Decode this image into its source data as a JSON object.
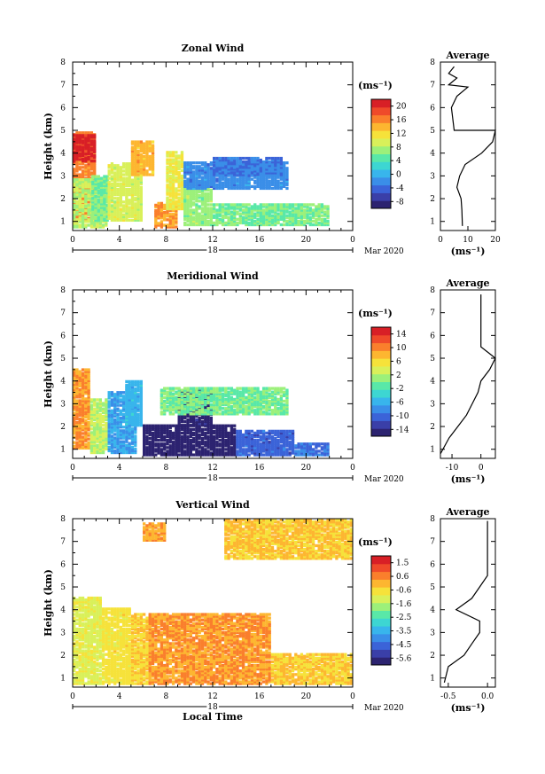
{
  "chart_data": [
    {
      "type": "heatmap",
      "title": "Zonal Wind",
      "ylabel": "Height (km)",
      "xticks": [
        "0",
        "4",
        "8",
        "12",
        "16",
        "20",
        "0"
      ],
      "day_label": "18",
      "date_label": "Mar 2020",
      "xlim": [
        0,
        24
      ],
      "ylim": [
        0.6,
        8
      ],
      "yticks": [
        "1",
        "2",
        "3",
        "4",
        "5",
        "6",
        "7",
        "8"
      ],
      "colorbar": {
        "unit": "(ms⁻¹)",
        "ticks": [
          "20",
          "16",
          "12",
          "8",
          "4",
          "0",
          "-4",
          "-8"
        ],
        "range": [
          -8,
          20
        ]
      },
      "blobs": [
        {
          "t0": 0,
          "t1": 2,
          "h0": 1.0,
          "h1": 4.9,
          "v": 15
        },
        {
          "t0": 0,
          "t1": 1.8,
          "h0": 3.6,
          "h1": 4.8,
          "v": 19
        },
        {
          "t0": 0,
          "t1": 3,
          "h0": 0.7,
          "h1": 2.8,
          "v": 8
        },
        {
          "t0": 1.6,
          "t1": 3,
          "h0": 1.0,
          "h1": 3.0,
          "v": 6
        },
        {
          "t0": 3,
          "t1": 6,
          "h0": 1.0,
          "h1": 3.5,
          "v": 9
        },
        {
          "t0": 5,
          "t1": 7,
          "h0": 3.0,
          "h1": 4.5,
          "v": 13
        },
        {
          "t0": 7,
          "t1": 9,
          "h0": 0.7,
          "h1": 1.8,
          "v": 14
        },
        {
          "t0": 8,
          "t1": 9.5,
          "h0": 1.5,
          "h1": 4.0,
          "v": 10
        },
        {
          "t0": 9.5,
          "t1": 12,
          "h0": 0.8,
          "h1": 2.8,
          "v": 7
        },
        {
          "t0": 12,
          "t1": 22,
          "h0": 0.8,
          "h1": 1.7,
          "v": 6
        },
        {
          "t0": 9.5,
          "t1": 18.5,
          "h0": 2.4,
          "h1": 3.6,
          "v": -1
        },
        {
          "t0": 12,
          "t1": 18,
          "h0": 3.0,
          "h1": 3.8,
          "v": -2
        }
      ],
      "average": {
        "title": "Average",
        "xlim": [
          0,
          20
        ],
        "xticks": [
          "0",
          "10",
          "20"
        ],
        "xlabel": "(ms⁻¹)",
        "profile": [
          [
            8,
            0.8
          ],
          [
            7.8,
            1.5
          ],
          [
            7.5,
            2.0
          ],
          [
            6,
            2.5
          ],
          [
            7,
            3.0
          ],
          [
            9,
            3.5
          ],
          [
            15,
            4.0
          ],
          [
            19,
            4.5
          ],
          [
            21,
            5.0
          ],
          [
            5,
            5.0
          ],
          [
            4,
            6.0
          ],
          [
            6,
            6.5
          ],
          [
            10,
            6.9
          ],
          [
            3,
            7.0
          ],
          [
            6,
            7.3
          ],
          [
            3,
            7.5
          ],
          [
            5,
            7.8
          ]
        ]
      }
    },
    {
      "type": "heatmap",
      "title": "Meridional Wind",
      "ylabel": "Height (km)",
      "xticks": [
        "0",
        "4",
        "8",
        "12",
        "16",
        "20",
        "0"
      ],
      "day_label": "18",
      "date_label": "Mar 2020",
      "xlim": [
        0,
        24
      ],
      "ylim": [
        0.6,
        8
      ],
      "yticks": [
        "1",
        "2",
        "3",
        "4",
        "5",
        "6",
        "7",
        "8"
      ],
      "colorbar": {
        "unit": "(ms⁻¹)",
        "ticks": [
          "14",
          "10",
          "6",
          "2",
          "-2",
          "-6",
          "-10",
          "-14"
        ],
        "range": [
          -14,
          14
        ]
      },
      "blobs": [
        {
          "t0": 0,
          "t1": 1.5,
          "h0": 1.0,
          "h1": 4.5,
          "v": 8
        },
        {
          "t0": 1.5,
          "t1": 3,
          "h0": 0.8,
          "h1": 3.2,
          "v": 2
        },
        {
          "t0": 3,
          "t1": 5.5,
          "h0": 0.8,
          "h1": 3.5,
          "v": -6
        },
        {
          "t0": 4.5,
          "t1": 6,
          "h0": 2.0,
          "h1": 4.0,
          "v": -5
        },
        {
          "t0": 6,
          "t1": 14,
          "h0": 0.7,
          "h1": 2.0,
          "v": -14
        },
        {
          "t0": 9,
          "t1": 12,
          "h0": 2.0,
          "h1": 3.6,
          "v": -13
        },
        {
          "t0": 14,
          "t1": 19,
          "h0": 0.7,
          "h1": 1.8,
          "v": -9
        },
        {
          "t0": 19,
          "t1": 22,
          "h0": 0.7,
          "h1": 1.2,
          "v": -8
        },
        {
          "t0": 7.5,
          "t1": 18.5,
          "h0": 2.5,
          "h1": 3.7,
          "v": 0
        }
      ],
      "average": {
        "title": "Average",
        "xlim": [
          -14,
          5
        ],
        "xticks": [
          "-10",
          "0"
        ],
        "xlabel": "(ms⁻¹)",
        "profile": [
          [
            -14,
            0.8
          ],
          [
            -11,
            1.5
          ],
          [
            -8,
            2.0
          ],
          [
            -5,
            2.5
          ],
          [
            -3,
            3.0
          ],
          [
            -1,
            3.5
          ],
          [
            0,
            4.0
          ],
          [
            3,
            4.5
          ],
          [
            5,
            5.0
          ],
          [
            3,
            5.2
          ],
          [
            0,
            5.5
          ],
          [
            0,
            6.0
          ],
          [
            0,
            6.5
          ],
          [
            0,
            7.0
          ],
          [
            0,
            7.5
          ],
          [
            0,
            7.8
          ]
        ]
      }
    },
    {
      "type": "heatmap",
      "title": "Vertical Wind",
      "ylabel": "Height (km)",
      "xlabel": "Local Time",
      "xticks": [
        "0",
        "4",
        "8",
        "12",
        "16",
        "20",
        "0"
      ],
      "day_label": "18",
      "date_label": "Mar 2020",
      "xlim": [
        0,
        24
      ],
      "ylim": [
        0.6,
        8
      ],
      "yticks": [
        "1",
        "2",
        "3",
        "4",
        "5",
        "6",
        "7",
        "8"
      ],
      "colorbar": {
        "unit": "(ms⁻¹)",
        "ticks": [
          "1.5",
          "0.6",
          "-0.6",
          "-1.6",
          "-2.5",
          "-3.5",
          "-4.5",
          "-5.6"
        ],
        "range": [
          -6,
          2
        ]
      },
      "blobs": [
        {
          "t0": 0,
          "t1": 2.5,
          "h0": 0.7,
          "h1": 4.5,
          "v": -1.0
        },
        {
          "t0": 2.5,
          "t1": 5,
          "h0": 0.7,
          "h1": 4.0,
          "v": -0.6
        },
        {
          "t0": 5,
          "t1": 6.5,
          "h0": 0.7,
          "h1": 3.8,
          "v": -0.3
        },
        {
          "t0": 6.5,
          "t1": 17,
          "h0": 0.7,
          "h1": 3.8,
          "v": 0.3
        },
        {
          "t0": 17,
          "t1": 24,
          "h0": 0.7,
          "h1": 2.0,
          "v": -0.3
        },
        {
          "t0": 13,
          "t1": 24,
          "h0": 6.2,
          "h1": 7.9,
          "v": -0.2
        },
        {
          "t0": 6,
          "t1": 8,
          "h0": 7.0,
          "h1": 7.8,
          "v": 0.2
        }
      ],
      "average": {
        "title": "Average",
        "xlim": [
          -0.6,
          0.1
        ],
        "xticks": [
          "-0.5",
          "0.0"
        ],
        "xlabel": "(ms⁻¹)",
        "profile": [
          [
            -0.55,
            0.8
          ],
          [
            -0.5,
            1.5
          ],
          [
            -0.3,
            2.0
          ],
          [
            -0.2,
            2.5
          ],
          [
            -0.1,
            3.0
          ],
          [
            -0.1,
            3.5
          ],
          [
            -0.4,
            4.0
          ],
          [
            -0.2,
            4.5
          ],
          [
            -0.1,
            5.0
          ],
          [
            0.0,
            5.5
          ],
          [
            0.0,
            6.0
          ],
          [
            0.0,
            6.5
          ],
          [
            0.0,
            7.0
          ],
          [
            0.0,
            7.5
          ],
          [
            0.0,
            7.9
          ]
        ]
      }
    }
  ]
}
